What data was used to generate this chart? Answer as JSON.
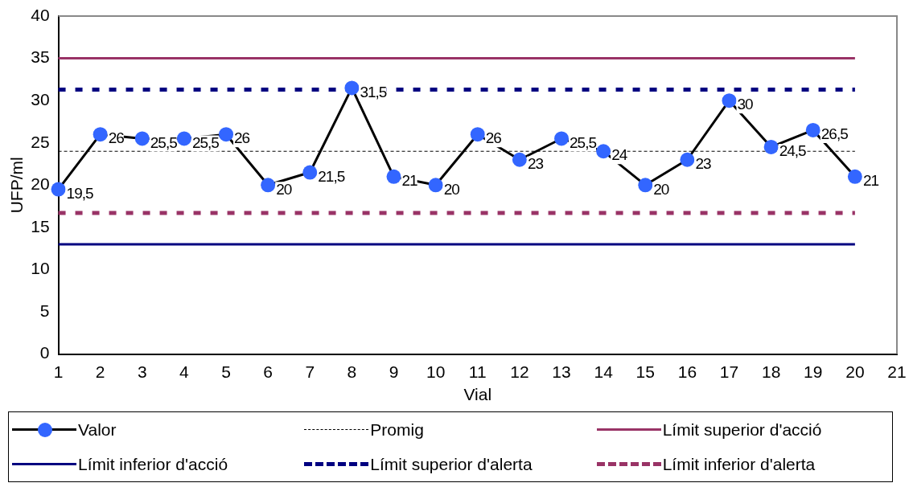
{
  "chart_data": {
    "type": "line",
    "xlabel": "Vial",
    "ylabel": "UFP/ml",
    "xlim": [
      1,
      21
    ],
    "xticks": [
      1,
      2,
      3,
      4,
      5,
      6,
      7,
      8,
      9,
      10,
      11,
      12,
      13,
      14,
      15,
      16,
      17,
      18,
      19,
      20,
      21
    ],
    "ylim": [
      0,
      40
    ],
    "yticks": [
      0,
      5,
      10,
      15,
      20,
      25,
      30,
      35,
      40
    ],
    "grid": false,
    "legend": "bottom",
    "x": [
      1,
      2,
      3,
      4,
      5,
      6,
      7,
      8,
      9,
      10,
      11,
      12,
      13,
      14,
      15,
      16,
      17,
      18,
      19,
      20
    ],
    "series": [
      {
        "name": "Valor",
        "color": "#000000",
        "colors": [
          "#3366ff",
          "#3366ff",
          "#3366ff",
          "#3366ff",
          "#3366ff",
          "#3366ff",
          "#3366ff",
          "#3366ff",
          "#3366ff",
          "#3366ff",
          "#3366ff",
          "#3366ff",
          "#3366ff",
          "#3366ff",
          "#3366ff",
          "#3366ff",
          "#3366ff",
          "#3366ff",
          "#3366ff",
          "#3366ff"
        ],
        "marker": "circle",
        "line_style": "solid",
        "values": [
          19.5,
          26,
          25.5,
          25.5,
          26,
          20,
          21.5,
          31.5,
          21,
          20,
          26,
          23,
          25.5,
          24,
          20,
          23,
          30,
          24.5,
          26.5,
          21
        ],
        "value_labels": [
          "19,5",
          "26",
          "25,5",
          "25,5",
          "26",
          "20",
          "21,5",
          "31,5",
          "21",
          "20",
          "26",
          "23",
          "25,5",
          "24",
          "20",
          "23",
          "30",
          "24,5",
          "26,5",
          "21"
        ]
      }
    ],
    "ref_lines": [
      {
        "axis": "y",
        "value": 24,
        "label": "Promig",
        "color": "#000000",
        "line_style": "dotted"
      },
      {
        "axis": "y",
        "value": 35,
        "label": "Límit superior d'acció",
        "color": "#993366",
        "line_style": "solid"
      },
      {
        "axis": "y",
        "value": 13,
        "label": "Límit inferior d'acció",
        "color": "#000080",
        "line_style": "solid"
      },
      {
        "axis": "y",
        "value": 31.3,
        "label": "Límit superior d'alerta",
        "color": "#000080",
        "line_style": "dashed"
      },
      {
        "axis": "y",
        "value": 16.7,
        "label": "Límit inferior d'alerta",
        "color": "#993366",
        "line_style": "dashed"
      }
    ]
  }
}
